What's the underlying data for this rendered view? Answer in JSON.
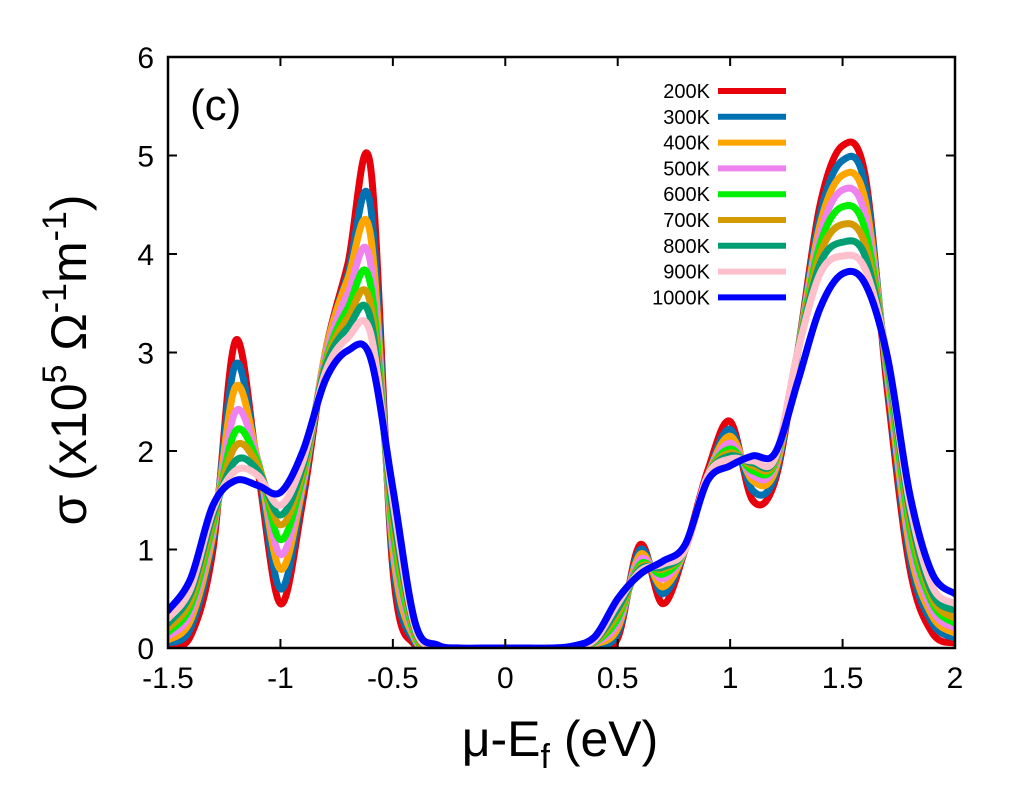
{
  "chart_data": {
    "type": "line",
    "title": "",
    "panel_label": "(c)",
    "xlabel": "μ-E",
    "xlabel_sub": "f",
    "xlabel_unit": " (eV)",
    "ylabel_parts": {
      "prefix": "σ (x10",
      "exp1": "5",
      "mid": " Ω",
      "exp2": "-1",
      "mid2": "m",
      "exp3": "-1",
      "suffix": ")"
    },
    "xlim": [
      -1.5,
      2.0
    ],
    "ylim": [
      0,
      6
    ],
    "xticks": [
      -1.5,
      -1.0,
      -0.5,
      0.0,
      0.5,
      1.0,
      1.5,
      2.0
    ],
    "xtick_labels": [
      "-1.5",
      "-1",
      "-0.5",
      "0",
      "0.5",
      "1",
      "1.5",
      "2"
    ],
    "yticks": [
      0,
      1,
      2,
      3,
      4,
      5,
      6
    ],
    "ytick_labels": [
      "0",
      "1",
      "2",
      "3",
      "4",
      "5",
      "6"
    ],
    "legend_position": "top-right",
    "x": [
      -1.5,
      -1.4,
      -1.3,
      -1.2,
      -1.1,
      -1.0,
      -0.9,
      -0.8,
      -0.7,
      -0.6,
      -0.5,
      -0.4,
      -0.3,
      -0.2,
      -0.1,
      0.0,
      0.1,
      0.2,
      0.3,
      0.4,
      0.5,
      0.6,
      0.7,
      0.8,
      0.9,
      1.0,
      1.1,
      1.2,
      1.3,
      1.4,
      1.5,
      1.6,
      1.7,
      1.8,
      1.9,
      2.0
    ],
    "series": [
      {
        "name": "200K",
        "color": "#e8000b",
        "values": [
          0.02,
          0.12,
          1.0,
          3.12,
          1.8,
          0.45,
          1.5,
          3.0,
          3.9,
          4.9,
          0.8,
          0.02,
          0.0,
          0.0,
          0.0,
          0.0,
          0.0,
          0.0,
          0.0,
          0.02,
          0.1,
          1.05,
          0.45,
          1.0,
          1.8,
          2.3,
          1.5,
          1.7,
          3.0,
          4.5,
          5.1,
          4.8,
          2.6,
          0.8,
          0.15,
          0.05
        ]
      },
      {
        "name": "300K",
        "color": "#0072b2",
        "values": [
          0.05,
          0.2,
          1.1,
          2.88,
          1.85,
          0.6,
          1.6,
          3.0,
          3.8,
          4.5,
          0.9,
          0.05,
          0.0,
          0.0,
          0.0,
          0.0,
          0.0,
          0.0,
          0.0,
          0.03,
          0.15,
          1.0,
          0.55,
          1.0,
          1.75,
          2.22,
          1.6,
          1.75,
          3.0,
          4.4,
          4.95,
          4.7,
          2.7,
          0.9,
          0.25,
          0.1
        ]
      },
      {
        "name": "400K",
        "color": "#ffa500",
        "values": [
          0.08,
          0.28,
          1.15,
          2.65,
          1.9,
          0.8,
          1.65,
          3.0,
          3.75,
          4.2,
          1.0,
          0.08,
          0.0,
          0.0,
          0.0,
          0.0,
          0.0,
          0.0,
          0.0,
          0.04,
          0.2,
          0.95,
          0.62,
          1.0,
          1.75,
          2.15,
          1.7,
          1.8,
          3.0,
          4.3,
          4.8,
          4.55,
          2.75,
          1.0,
          0.32,
          0.15
        ]
      },
      {
        "name": "500K",
        "color": "#ee82ee",
        "values": [
          0.12,
          0.35,
          1.2,
          2.4,
          1.9,
          0.95,
          1.7,
          2.95,
          3.6,
          3.92,
          1.1,
          0.1,
          0.01,
          0.0,
          0.0,
          0.0,
          0.0,
          0.0,
          0.0,
          0.05,
          0.25,
          0.9,
          0.7,
          1.0,
          1.75,
          2.08,
          1.75,
          1.85,
          3.0,
          4.2,
          4.65,
          4.4,
          2.8,
          1.1,
          0.38,
          0.2
        ]
      },
      {
        "name": "600K",
        "color": "#00f000",
        "values": [
          0.16,
          0.42,
          1.25,
          2.2,
          1.88,
          1.1,
          1.75,
          2.9,
          3.45,
          3.7,
          1.2,
          0.12,
          0.01,
          0.0,
          0.0,
          0.0,
          0.0,
          0.0,
          0.0,
          0.06,
          0.3,
          0.85,
          0.75,
          1.0,
          1.75,
          2.02,
          1.8,
          1.88,
          3.0,
          4.1,
          4.48,
          4.25,
          2.85,
          1.2,
          0.45,
          0.25
        ]
      },
      {
        "name": "700K",
        "color": "#d49b00",
        "values": [
          0.2,
          0.48,
          1.3,
          2.05,
          1.85,
          1.25,
          1.8,
          2.88,
          3.35,
          3.5,
          1.3,
          0.15,
          0.01,
          0.0,
          0.0,
          0.0,
          0.0,
          0.0,
          0.0,
          0.07,
          0.35,
          0.82,
          0.8,
          1.0,
          1.75,
          1.98,
          1.85,
          1.9,
          3.0,
          4.0,
          4.3,
          4.1,
          2.9,
          1.3,
          0.5,
          0.3
        ]
      },
      {
        "name": "800K",
        "color": "#009e73",
        "values": [
          0.25,
          0.55,
          1.35,
          1.9,
          1.8,
          1.35,
          1.85,
          2.85,
          3.25,
          3.35,
          1.4,
          0.18,
          0.02,
          0.0,
          0.0,
          0.0,
          0.0,
          0.0,
          0.0,
          0.08,
          0.4,
          0.8,
          0.82,
          1.0,
          1.75,
          1.95,
          1.88,
          1.92,
          3.0,
          3.9,
          4.12,
          3.98,
          2.92,
          1.38,
          0.55,
          0.38
        ]
      },
      {
        "name": "900K",
        "color": "#ffc0cb",
        "values": [
          0.3,
          0.6,
          1.4,
          1.8,
          1.75,
          1.45,
          1.9,
          2.8,
          3.15,
          3.2,
          1.5,
          0.2,
          0.02,
          0.0,
          0.0,
          0.0,
          0.0,
          0.0,
          0.0,
          0.09,
          0.45,
          0.78,
          0.85,
          1.0,
          1.75,
          1.92,
          1.9,
          1.93,
          3.0,
          3.8,
          3.98,
          3.85,
          2.95,
          1.45,
          0.62,
          0.45
        ]
      },
      {
        "name": "1000K",
        "color": "#0000ff",
        "values": [
          0.38,
          0.7,
          1.45,
          1.7,
          1.65,
          1.58,
          2.0,
          2.72,
          3.02,
          2.95,
          1.62,
          0.25,
          0.03,
          0.0,
          0.0,
          0.0,
          0.0,
          0.0,
          0.02,
          0.12,
          0.5,
          0.75,
          0.88,
          1.05,
          1.7,
          1.85,
          1.95,
          1.98,
          2.7,
          3.45,
          3.8,
          3.7,
          2.95,
          1.55,
          0.75,
          0.55
        ]
      }
    ]
  }
}
